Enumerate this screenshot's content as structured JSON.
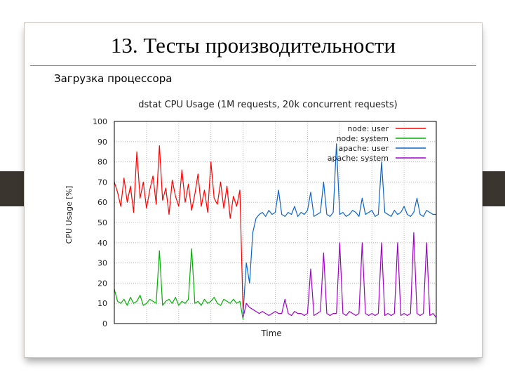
{
  "slide": {
    "title": "13. Тесты производительности",
    "subtitle": "Загрузка процессора"
  },
  "colors": {
    "node_user": "#ff0000",
    "node_system": "#00b000",
    "apache_user": "#0b63c9",
    "apache_system": "#a000c8",
    "accent_rule": "#8a9a3a",
    "side_tab": "#3b3530"
  },
  "chart_data": {
    "type": "line",
    "title": "dstat CPU Usage (1M requests, 20k concurrent requests)",
    "xlabel": "Time",
    "ylabel": "CPU Usage [%]",
    "ylim": [
      0,
      100
    ],
    "yticks": [
      "0",
      "10",
      "20",
      "30",
      "40",
      "50",
      "60",
      "70",
      "80",
      "90",
      "100"
    ],
    "grid": true,
    "legend_position": "top-right",
    "x": [
      0,
      1,
      2,
      3,
      4,
      5,
      6,
      7,
      8,
      9,
      10,
      11,
      12,
      13,
      14,
      15,
      16,
      17,
      18,
      19,
      20,
      21,
      22,
      23,
      24,
      25,
      26,
      27,
      28,
      29,
      30,
      31,
      32,
      33,
      34,
      35,
      36,
      37,
      38,
      39,
      40,
      41,
      42,
      43,
      44,
      45,
      46,
      47,
      48,
      49,
      50,
      51,
      52,
      53,
      54,
      55,
      56,
      57,
      58,
      59,
      60,
      61,
      62,
      63,
      64,
      65,
      66,
      67,
      68,
      69,
      70,
      71,
      72,
      73,
      74,
      75,
      76,
      77,
      78,
      79,
      80,
      81,
      82,
      83,
      84,
      85,
      86,
      87,
      88,
      89,
      90,
      91,
      92,
      93,
      94,
      95,
      96,
      97,
      98,
      99,
      100
    ],
    "series": [
      {
        "name": "node: user",
        "values": [
          70,
          65,
          58,
          72,
          60,
          68,
          55,
          85,
          62,
          70,
          57,
          66,
          73,
          59,
          88,
          61,
          67,
          54,
          71,
          63,
          58,
          76,
          60,
          69,
          56,
          64,
          74,
          58,
          66,
          55,
          80,
          62,
          59,
          70,
          57,
          68,
          52,
          63,
          58,
          66,
          5,
          null,
          null,
          null,
          null,
          null,
          null,
          null,
          null,
          null,
          null,
          null,
          null,
          null,
          null,
          null,
          null,
          null,
          null,
          null,
          null,
          null,
          null,
          null,
          null,
          null,
          null,
          null,
          null,
          null,
          null,
          null,
          null,
          null,
          null,
          null,
          null,
          null,
          null,
          null,
          null,
          null,
          null,
          null,
          null,
          null,
          null,
          null,
          null,
          null,
          null,
          null,
          null,
          null,
          null,
          null,
          null,
          null,
          null,
          null,
          null
        ]
      },
      {
        "name": "node: system",
        "values": [
          17,
          11,
          10,
          12,
          9,
          13,
          10,
          11,
          14,
          9,
          10,
          12,
          11,
          10,
          36,
          9,
          11,
          12,
          10,
          13,
          9,
          11,
          10,
          12,
          37,
          10,
          11,
          9,
          12,
          10,
          11,
          13,
          10,
          9,
          12,
          11,
          10,
          12,
          10,
          11,
          2,
          null,
          null,
          null,
          null,
          null,
          null,
          null,
          null,
          null,
          null,
          null,
          null,
          null,
          null,
          null,
          null,
          null,
          null,
          null,
          null,
          null,
          null,
          null,
          null,
          null,
          null,
          null,
          null,
          null,
          null,
          null,
          null,
          null,
          null,
          null,
          null,
          null,
          null,
          null,
          null,
          null,
          null,
          null,
          null,
          null,
          null,
          null,
          null,
          null,
          null,
          null,
          null,
          null,
          null,
          null,
          null,
          null,
          null,
          null,
          null
        ]
      },
      {
        "name": "apache: user",
        "values": [
          null,
          null,
          null,
          null,
          null,
          null,
          null,
          null,
          null,
          null,
          null,
          null,
          null,
          null,
          null,
          null,
          null,
          null,
          null,
          null,
          null,
          null,
          null,
          null,
          null,
          null,
          null,
          null,
          null,
          null,
          null,
          null,
          null,
          null,
          null,
          null,
          null,
          null,
          null,
          null,
          5,
          30,
          20,
          45,
          52,
          54,
          55,
          53,
          56,
          54,
          55,
          66,
          54,
          53,
          55,
          54,
          58,
          53,
          55,
          54,
          56,
          65,
          53,
          54,
          55,
          70,
          54,
          53,
          55,
          89,
          54,
          55,
          53,
          54,
          56,
          55,
          53,
          62,
          54,
          55,
          56,
          53,
          54,
          80,
          55,
          54,
          53,
          56,
          54,
          55,
          58,
          54,
          53,
          55,
          62,
          54,
          53,
          56,
          55,
          54,
          54
        ]
      },
      {
        "name": "apache: system",
        "values": [
          null,
          null,
          null,
          null,
          null,
          null,
          null,
          null,
          null,
          null,
          null,
          null,
          null,
          null,
          null,
          null,
          null,
          null,
          null,
          null,
          null,
          null,
          null,
          null,
          null,
          null,
          null,
          null,
          null,
          null,
          null,
          null,
          null,
          null,
          null,
          null,
          null,
          null,
          null,
          null,
          3,
          10,
          8,
          7,
          6,
          5,
          6,
          5,
          4,
          5,
          6,
          5,
          5,
          12,
          5,
          4,
          6,
          5,
          5,
          4,
          5,
          27,
          4,
          5,
          6,
          35,
          5,
          4,
          5,
          5,
          40,
          5,
          4,
          6,
          5,
          4,
          5,
          40,
          5,
          4,
          5,
          4,
          5,
          40,
          4,
          5,
          4,
          5,
          40,
          4,
          5,
          4,
          5,
          45,
          5,
          4,
          5,
          40,
          4,
          5,
          3
        ]
      }
    ]
  }
}
